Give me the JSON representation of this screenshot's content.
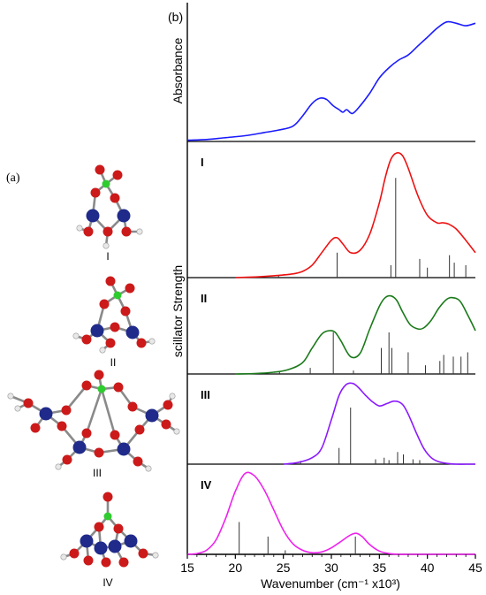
{
  "panel_a": {
    "label": "(a)",
    "structures": [
      {
        "label": "I"
      },
      {
        "label": "II"
      },
      {
        "label": "III"
      },
      {
        "label": "IV"
      }
    ],
    "colors": {
      "oxygen": "#cc1a1a",
      "metal": "#1f2a8a",
      "center": "#2fcc2f",
      "hydrogen": "#e8e8e8",
      "bond": "#8a8a8a"
    }
  },
  "panel_b": {
    "label": "(b)"
  },
  "chart_data": {
    "type": "line",
    "xlabel": "Wavenumber (cm⁻¹ x10³)",
    "ylabel_top": "Absorbance",
    "ylabel_bottom": "scillator Strength",
    "xlim": [
      15,
      45
    ],
    "xticks": [
      "15",
      "20",
      "25",
      "30",
      "35",
      "40",
      "45"
    ],
    "panels": [
      {
        "name": "absorbance",
        "label": "",
        "color": "#1a1aff",
        "curve": {
          "x": [
            15,
            17,
            19,
            21,
            23,
            24.5,
            26,
            27,
            28,
            28.8,
            29.5,
            30.2,
            30.8,
            31.2,
            31.6,
            32.2,
            33,
            34,
            35,
            36,
            37,
            38,
            39,
            40,
            41,
            42,
            43,
            44,
            45
          ],
          "y": [
            0.01,
            0.015,
            0.03,
            0.045,
            0.07,
            0.09,
            0.12,
            0.2,
            0.3,
            0.34,
            0.33,
            0.28,
            0.25,
            0.23,
            0.25,
            0.22,
            0.28,
            0.38,
            0.5,
            0.58,
            0.64,
            0.68,
            0.75,
            0.82,
            0.89,
            0.94,
            0.93,
            0.91,
            0.93
          ]
        },
        "ylim": [
          0,
          1.05
        ]
      },
      {
        "name": "I",
        "label": "I",
        "color": "#ee1111",
        "curve": {
          "x": [
            20,
            22,
            24,
            26,
            27,
            28,
            29,
            30,
            30.6,
            31.2,
            32,
            33,
            34,
            35,
            35.6,
            36.2,
            36.8,
            37.4,
            38,
            39,
            40,
            41,
            41.6,
            42.2,
            43,
            44,
            45
          ],
          "y": [
            0.0,
            0.005,
            0.015,
            0.03,
            0.05,
            0.1,
            0.2,
            0.3,
            0.32,
            0.27,
            0.2,
            0.22,
            0.35,
            0.6,
            0.8,
            0.95,
            1.0,
            0.98,
            0.88,
            0.66,
            0.5,
            0.44,
            0.44,
            0.43,
            0.39,
            0.3,
            0.2
          ]
        },
        "sticks": [
          [
            24.5,
            0.02
          ],
          [
            30.6,
            0.2
          ],
          [
            36.2,
            0.1
          ],
          [
            36.7,
            0.8
          ],
          [
            39.2,
            0.15
          ],
          [
            40,
            0.08
          ],
          [
            42.3,
            0.18
          ],
          [
            42.8,
            0.12
          ],
          [
            44,
            0.1
          ]
        ],
        "ylim": [
          0,
          1.05
        ]
      },
      {
        "name": "II",
        "label": "II",
        "color": "#1a7a1a",
        "curve": {
          "x": [
            20,
            22,
            24,
            25.5,
            27,
            28,
            29,
            29.8,
            30.4,
            31,
            32,
            33,
            34,
            35,
            35.6,
            36.2,
            36.8,
            37.4,
            38.2,
            39,
            39.6,
            40.4,
            41.2,
            42,
            42.6,
            43.4,
            44.2,
            45
          ],
          "y": [
            0.0,
            0.005,
            0.02,
            0.05,
            0.13,
            0.3,
            0.46,
            0.5,
            0.48,
            0.38,
            0.2,
            0.24,
            0.52,
            0.78,
            0.88,
            0.9,
            0.85,
            0.72,
            0.57,
            0.52,
            0.53,
            0.62,
            0.76,
            0.86,
            0.88,
            0.84,
            0.68,
            0.5
          ]
        },
        "sticks": [
          [
            24.6,
            0.03
          ],
          [
            27.8,
            0.07
          ],
          [
            30.2,
            0.48
          ],
          [
            32.3,
            0.04
          ],
          [
            35.2,
            0.3
          ],
          [
            36,
            0.48
          ],
          [
            36.3,
            0.3
          ],
          [
            38,
            0.25
          ],
          [
            39.8,
            0.1
          ],
          [
            41.3,
            0.15
          ],
          [
            41.7,
            0.22
          ],
          [
            42.7,
            0.2
          ],
          [
            43.5,
            0.2
          ],
          [
            44.2,
            0.25
          ]
        ],
        "ylim": [
          0,
          1.05
        ]
      },
      {
        "name": "III",
        "label": "III",
        "color": "#8a1aff",
        "curve": {
          "x": [
            25,
            26.5,
            28,
            29,
            30,
            30.8,
            31.5,
            32.2,
            32.8,
            33.5,
            34.2,
            35,
            35.8,
            36.6,
            37.4,
            38,
            38.8,
            39.6,
            40.4,
            41.2,
            42,
            43,
            44,
            45
          ],
          "y": [
            0.0,
            0.02,
            0.08,
            0.2,
            0.55,
            0.85,
            0.98,
            1.0,
            0.95,
            0.86,
            0.78,
            0.72,
            0.75,
            0.78,
            0.74,
            0.62,
            0.4,
            0.2,
            0.08,
            0.03,
            0.01,
            0.0,
            0.0,
            0.0
          ]
        },
        "sticks": [
          [
            26.8,
            0.04
          ],
          [
            30.8,
            0.2
          ],
          [
            32,
            0.7
          ],
          [
            34.6,
            0.06
          ],
          [
            35.5,
            0.08
          ],
          [
            36,
            0.05
          ],
          [
            36.9,
            0.15
          ],
          [
            37.5,
            0.12
          ],
          [
            38.5,
            0.06
          ],
          [
            39.2,
            0.05
          ]
        ],
        "ylim": [
          0,
          1.05
        ]
      },
      {
        "name": "IV",
        "label": "IV",
        "color": "#ee22ee",
        "curve": {
          "x": [
            15,
            16,
            17,
            18,
            19,
            20,
            21,
            22,
            23,
            24,
            25,
            26,
            27,
            28,
            29,
            30,
            31,
            32,
            32.6,
            33.2,
            34,
            35,
            36,
            37,
            38,
            39,
            40,
            45
          ],
          "y": [
            0.0,
            0.01,
            0.05,
            0.18,
            0.45,
            0.78,
            1.0,
            0.97,
            0.8,
            0.55,
            0.3,
            0.13,
            0.05,
            0.02,
            0.03,
            0.08,
            0.16,
            0.24,
            0.26,
            0.22,
            0.12,
            0.04,
            0.01,
            0.0,
            0.0,
            0.0,
            0.0,
            0.0
          ]
        },
        "sticks": [
          [
            20.4,
            0.4
          ],
          [
            23.4,
            0.22
          ],
          [
            25.2,
            0.05
          ],
          [
            32.5,
            0.22
          ]
        ],
        "ylim": [
          0,
          1.05
        ]
      }
    ]
  }
}
